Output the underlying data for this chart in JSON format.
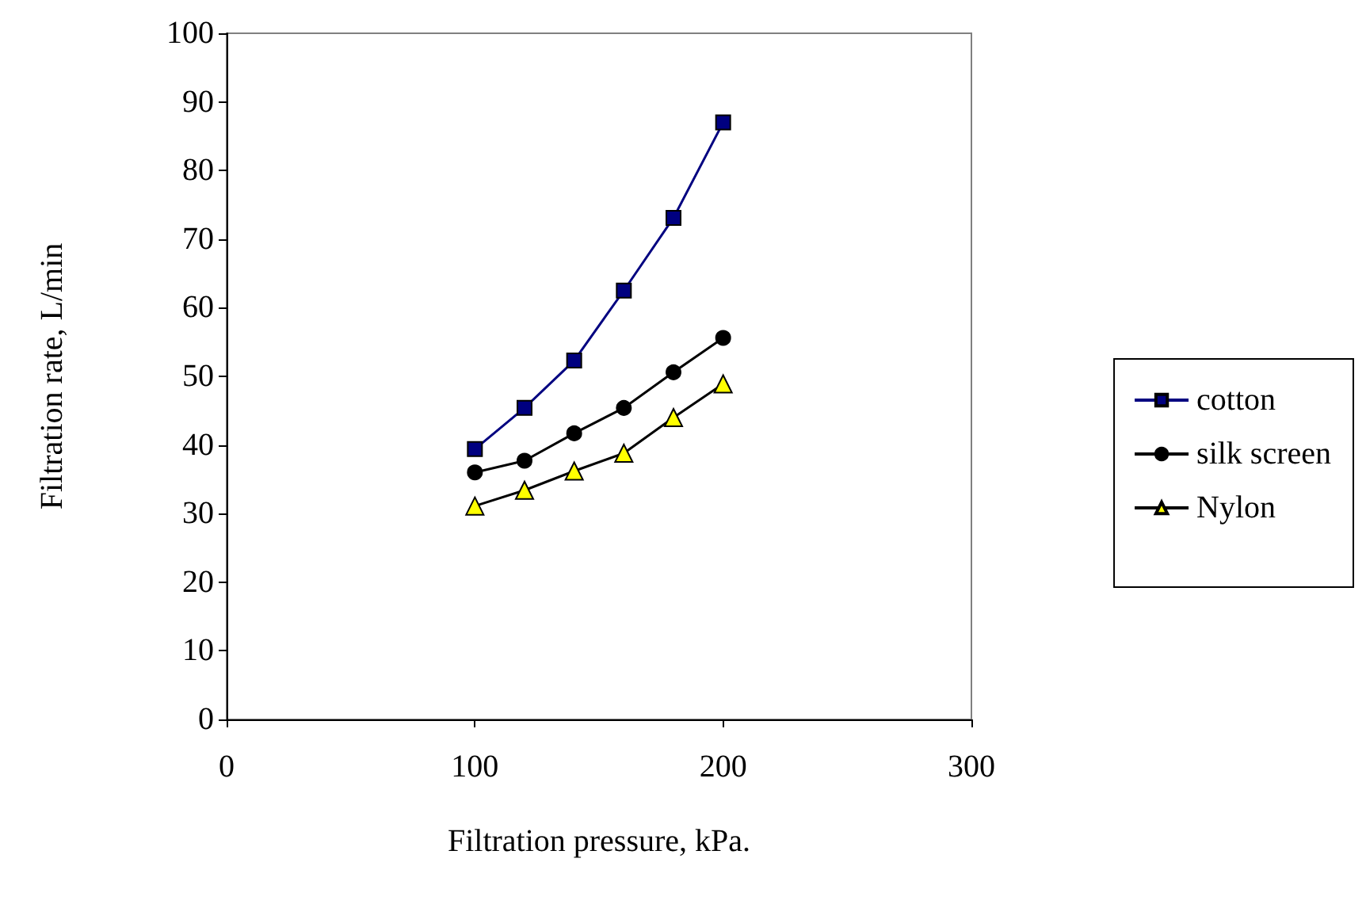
{
  "chart_data": {
    "type": "line",
    "xlabel": "Filtration pressure, kPa.",
    "ylabel": "Filtration rate, L/min",
    "x": [
      100,
      120,
      140,
      160,
      180,
      200
    ],
    "series": [
      {
        "name": "cotton",
        "color": "#000080",
        "marker": "square",
        "values": [
          39.4,
          45.4,
          52.3,
          62.5,
          73.1,
          87.0
        ]
      },
      {
        "name": "silk screen",
        "color": "#000000",
        "marker": "circle",
        "values": [
          36.0,
          37.7,
          41.7,
          45.4,
          50.6,
          55.6
        ]
      },
      {
        "name": "Nylon",
        "color": "#ffff00",
        "marker": "triangle",
        "values": [
          31.1,
          33.4,
          36.2,
          38.8,
          44.0,
          48.9
        ]
      }
    ],
    "xlim": [
      0,
      300
    ],
    "xticks": [
      0,
      100,
      200,
      300
    ],
    "ylim": [
      0,
      100
    ],
    "yticks": [
      0,
      10,
      20,
      30,
      40,
      50,
      60,
      70,
      80,
      90,
      100
    ],
    "grid": false,
    "legend": "right"
  }
}
